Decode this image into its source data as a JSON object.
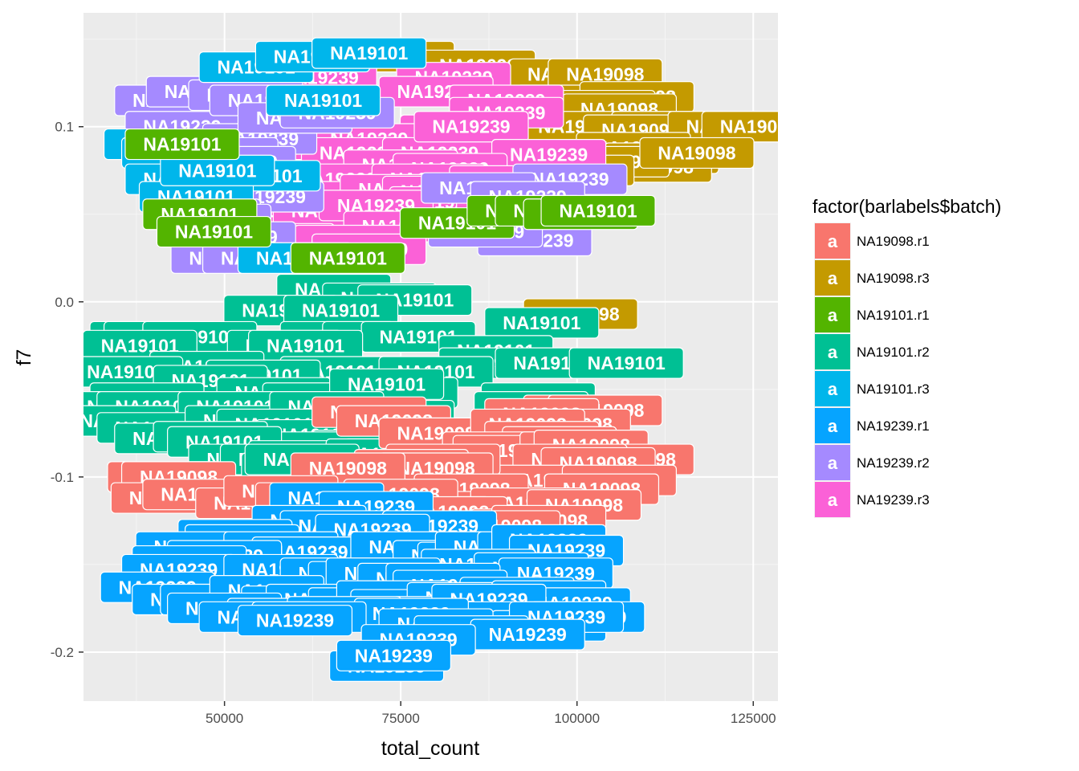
{
  "chart_data": {
    "type": "scatter",
    "xlabel": "total_count",
    "ylabel": "f7",
    "xlim": [
      30000,
      128500
    ],
    "ylim": [
      -0.228,
      0.165
    ],
    "x_ticks": [
      50000,
      75000,
      100000,
      125000
    ],
    "x_tick_labels": [
      "50000",
      "75000",
      "100000",
      "125000"
    ],
    "y_ticks": [
      0.1,
      0.0,
      -0.1,
      -0.2
    ],
    "y_tick_labels": [
      "0.1",
      "0.0",
      "-0.1",
      "-0.2"
    ],
    "grid": true,
    "legend": {
      "title": "factor(barlabels$batch)",
      "position": "right",
      "key_glyph": "a",
      "entries": [
        {
          "name": "NA19098.r1",
          "color": "#F8766D"
        },
        {
          "name": "NA19098.r3",
          "color": "#C49A00"
        },
        {
          "name": "NA19101.r1",
          "color": "#53B400"
        },
        {
          "name": "NA19101.r2",
          "color": "#00C094"
        },
        {
          "name": "NA19101.r3",
          "color": "#00B6EB"
        },
        {
          "name": "NA19239.r1",
          "color": "#06A4FF"
        },
        {
          "name": "NA19239.r2",
          "color": "#A58AFF"
        },
        {
          "name": "NA19239.r3",
          "color": "#FB61D7"
        }
      ]
    },
    "series": [
      {
        "name": "NA19098.r3",
        "label": "NA19098",
        "points": [
          [
            74500,
            0.14
          ],
          [
            86000,
            0.135
          ],
          [
            98500,
            0.13
          ],
          [
            104000,
            0.13
          ],
          [
            99500,
            0.115
          ],
          [
            108500,
            0.117
          ],
          [
            95000,
            0.105
          ],
          [
            103000,
            0.112
          ],
          [
            106000,
            0.11
          ],
          [
            100000,
            0.1
          ],
          [
            113000,
            0.1
          ],
          [
            109000,
            0.098
          ],
          [
            121000,
            0.1
          ],
          [
            125800,
            0.1
          ],
          [
            108000,
            0.088
          ],
          [
            112000,
            0.082
          ],
          [
            111000,
            0.077
          ],
          [
            105000,
            0.08
          ],
          [
            117000,
            0.085
          ],
          [
            100000,
            0.075
          ],
          [
            88500,
            0.07
          ],
          [
            91500,
            0.066
          ],
          [
            96000,
            0.072
          ],
          [
            100500,
            -0.007
          ]
        ]
      },
      {
        "name": "NA19239.r3",
        "label": "NA19239",
        "points": [
          [
            56000,
            0.13
          ],
          [
            63500,
            0.128
          ],
          [
            82500,
            0.128
          ],
          [
            80000,
            0.12
          ],
          [
            90000,
            0.115
          ],
          [
            90000,
            0.108
          ],
          [
            83000,
            0.098
          ],
          [
            63500,
            0.09
          ],
          [
            70500,
            0.093
          ],
          [
            69000,
            0.085
          ],
          [
            80500,
            0.085
          ],
          [
            85000,
            0.1
          ],
          [
            96000,
            0.084
          ],
          [
            75000,
            0.078
          ],
          [
            82000,
            0.076
          ],
          [
            66000,
            0.07
          ],
          [
            47000,
            0.06
          ],
          [
            60000,
            0.06
          ],
          [
            79000,
            0.07
          ],
          [
            90000,
            0.069
          ],
          [
            74500,
            0.064
          ],
          [
            80500,
            0.063
          ],
          [
            57500,
            0.052
          ],
          [
            81500,
            0.057
          ],
          [
            65000,
            0.052
          ],
          [
            71500,
            0.055
          ],
          [
            91000,
            0.05
          ],
          [
            86500,
            0.044
          ],
          [
            75000,
            0.043
          ],
          [
            90000,
            0.04
          ],
          [
            57500,
            0.036
          ],
          [
            68000,
            0.035
          ],
          [
            70500,
            0.03
          ]
        ]
      },
      {
        "name": "NA19239.r2",
        "label": "NA19239",
        "points": [
          [
            42500,
            0.115
          ],
          [
            44000,
            0.1
          ],
          [
            47000,
            0.12
          ],
          [
            53000,
            0.118
          ],
          [
            56000,
            0.115
          ],
          [
            55000,
            0.093
          ],
          [
            49500,
            0.085
          ],
          [
            60000,
            0.105
          ],
          [
            66000,
            0.108
          ],
          [
            52000,
            0.08
          ],
          [
            53500,
            0.07
          ],
          [
            56000,
            0.06
          ],
          [
            47000,
            0.05
          ],
          [
            48500,
            0.047
          ],
          [
            52000,
            0.037
          ],
          [
            50500,
            0.025
          ],
          [
            55000,
            0.025
          ],
          [
            99000,
            0.07
          ],
          [
            86000,
            0.065
          ],
          [
            93000,
            0.06
          ],
          [
            94000,
            0.035
          ],
          [
            87000,
            0.04
          ]
        ]
      },
      {
        "name": "NA19101.r3",
        "label": "NA19101",
        "points": [
          [
            54500,
            0.134
          ],
          [
            62500,
            0.14
          ],
          [
            70500,
            0.142
          ],
          [
            64000,
            0.115
          ],
          [
            41000,
            0.09
          ],
          [
            43500,
            0.085
          ],
          [
            44000,
            0.07
          ],
          [
            55500,
            0.072
          ],
          [
            46000,
            0.06
          ],
          [
            60000,
            0.025
          ],
          [
            49000,
            0.075
          ]
        ]
      },
      {
        "name": "NA19101.r1",
        "label": "NA19101",
        "points": [
          [
            44000,
            0.09
          ],
          [
            46500,
            0.05
          ],
          [
            48500,
            0.04
          ],
          [
            67500,
            0.025
          ],
          [
            83000,
            0.045
          ],
          [
            92500,
            0.052
          ],
          [
            96500,
            0.052
          ],
          [
            100500,
            0.05
          ],
          [
            103000,
            0.052
          ]
        ]
      },
      {
        "name": "NA19101.r2",
        "label": "NA19101",
        "points": [
          [
            65500,
            0.007
          ],
          [
            72000,
            0.002
          ],
          [
            77000,
            0.001
          ],
          [
            95000,
            -0.012
          ],
          [
            58000,
            -0.005
          ],
          [
            66500,
            -0.005
          ],
          [
            39000,
            -0.02
          ],
          [
            41000,
            -0.02
          ],
          [
            46500,
            -0.02
          ],
          [
            66000,
            -0.02
          ],
          [
            72000,
            -0.02
          ],
          [
            77500,
            -0.02
          ],
          [
            58500,
            -0.025
          ],
          [
            38000,
            -0.025
          ],
          [
            61500,
            -0.025
          ],
          [
            88500,
            -0.028
          ],
          [
            88500,
            -0.035
          ],
          [
            47500,
            -0.037
          ],
          [
            66000,
            -0.04
          ],
          [
            36000,
            -0.04
          ],
          [
            55500,
            -0.042
          ],
          [
            48000,
            -0.045
          ],
          [
            80000,
            -0.04
          ],
          [
            96500,
            -0.035
          ],
          [
            107000,
            -0.035
          ],
          [
            39000,
            -0.055
          ],
          [
            57000,
            -0.052
          ],
          [
            63500,
            -0.055
          ],
          [
            75000,
            -0.052
          ],
          [
            73000,
            -0.047
          ],
          [
            60000,
            -0.06
          ],
          [
            49500,
            -0.065
          ],
          [
            94500,
            -0.055
          ],
          [
            36000,
            -0.06
          ],
          [
            40000,
            -0.06
          ],
          [
            74500,
            -0.065
          ],
          [
            54000,
            -0.06
          ],
          [
            51500,
            -0.06
          ],
          [
            35000,
            -0.068
          ],
          [
            40000,
            -0.072
          ],
          [
            52500,
            -0.068
          ],
          [
            64500,
            -0.06
          ],
          [
            57000,
            -0.07
          ],
          [
            42500,
            -0.078
          ],
          [
            62500,
            -0.076
          ],
          [
            91000,
            -0.077
          ],
          [
            93500,
            -0.06
          ],
          [
            70500,
            -0.082
          ],
          [
            81500,
            -0.086
          ],
          [
            65000,
            -0.083
          ],
          [
            75000,
            -0.087
          ],
          [
            82000,
            -0.094
          ],
          [
            48000,
            -0.077
          ],
          [
            50000,
            -0.08
          ],
          [
            61500,
            -0.088
          ],
          [
            64000,
            -0.092
          ],
          [
            68500,
            -0.092
          ],
          [
            72500,
            -0.087
          ],
          [
            73500,
            -0.093
          ],
          [
            66000,
            -0.095
          ],
          [
            78000,
            -0.094
          ],
          [
            53000,
            -0.09
          ],
          [
            57500,
            -0.09
          ],
          [
            60500,
            -0.095
          ],
          [
            61000,
            -0.09
          ],
          [
            87500,
            -0.095
          ],
          [
            93000,
            -0.095
          ],
          [
            92000,
            -0.076
          ]
        ]
      },
      {
        "name": "NA19098.r1",
        "label": "NA19098",
        "points": [
          [
            70500,
            -0.063
          ],
          [
            74000,
            -0.068
          ],
          [
            80000,
            -0.075
          ],
          [
            100500,
            -0.062
          ],
          [
            104000,
            -0.062
          ],
          [
            95000,
            -0.064
          ],
          [
            99500,
            -0.07
          ],
          [
            93000,
            -0.07
          ],
          [
            95000,
            -0.077
          ],
          [
            97500,
            -0.08
          ],
          [
            89000,
            -0.083
          ],
          [
            90500,
            -0.085
          ],
          [
            100000,
            -0.083
          ],
          [
            102000,
            -0.082
          ],
          [
            108500,
            -0.09
          ],
          [
            99000,
            -0.09
          ],
          [
            103000,
            -0.092
          ],
          [
            95500,
            -0.102
          ],
          [
            106000,
            -0.102
          ],
          [
            103500,
            -0.107
          ],
          [
            81000,
            -0.09
          ],
          [
            76500,
            -0.093
          ],
          [
            80000,
            -0.095
          ],
          [
            81000,
            -0.11
          ],
          [
            85000,
            -0.107
          ],
          [
            85000,
            -0.117
          ],
          [
            93000,
            -0.115
          ],
          [
            101000,
            -0.116
          ],
          [
            67500,
            -0.095
          ],
          [
            41500,
            -0.1
          ],
          [
            43500,
            -0.1
          ],
          [
            42000,
            -0.112
          ],
          [
            46500,
            -0.11
          ],
          [
            54000,
            -0.115
          ],
          [
            65500,
            -0.12
          ],
          [
            58000,
            -0.108
          ],
          [
            62500,
            -0.112
          ],
          [
            74000,
            -0.12
          ],
          [
            79500,
            -0.12
          ],
          [
            75000,
            -0.11
          ],
          [
            82000,
            -0.12
          ],
          [
            93000,
            -0.127
          ],
          [
            96000,
            -0.125
          ],
          [
            89500,
            -0.128
          ]
        ]
      },
      {
        "name": "NA19239.r1",
        "label": "NA19239",
        "points": [
          [
            64500,
            -0.112
          ],
          [
            71500,
            -0.117
          ],
          [
            62000,
            -0.125
          ],
          [
            57500,
            -0.138
          ],
          [
            66000,
            -0.128
          ],
          [
            80500,
            -0.128
          ],
          [
            71000,
            -0.13
          ],
          [
            51500,
            -0.133
          ],
          [
            52500,
            -0.136
          ],
          [
            54000,
            -0.14
          ],
          [
            45500,
            -0.14
          ],
          [
            58000,
            -0.14
          ],
          [
            62000,
            -0.143
          ],
          [
            50000,
            -0.145
          ],
          [
            76000,
            -0.14
          ],
          [
            82000,
            -0.145
          ],
          [
            85500,
            -0.146
          ],
          [
            90000,
            -0.147
          ],
          [
            92000,
            -0.146
          ],
          [
            88000,
            -0.14
          ],
          [
            94000,
            -0.14
          ],
          [
            96000,
            -0.136
          ],
          [
            98500,
            -0.142
          ],
          [
            86000,
            -0.15
          ],
          [
            93500,
            -0.152
          ],
          [
            97000,
            -0.155
          ],
          [
            45000,
            -0.148
          ],
          [
            47500,
            -0.158
          ],
          [
            54000,
            -0.16
          ],
          [
            43500,
            -0.153
          ],
          [
            58000,
            -0.153
          ],
          [
            66000,
            -0.155
          ],
          [
            70000,
            -0.157
          ],
          [
            72500,
            -0.155
          ],
          [
            77000,
            -0.158
          ],
          [
            81000,
            -0.158
          ],
          [
            82000,
            -0.162
          ],
          [
            91500,
            -0.166
          ],
          [
            40500,
            -0.163
          ],
          [
            45000,
            -0.17
          ],
          [
            49000,
            -0.17
          ],
          [
            56000,
            -0.165
          ],
          [
            60500,
            -0.171
          ],
          [
            64000,
            -0.17
          ],
          [
            70000,
            -0.172
          ],
          [
            74000,
            -0.168
          ],
          [
            76000,
            -0.173
          ],
          [
            84000,
            -0.169
          ],
          [
            96000,
            -0.168
          ],
          [
            99500,
            -0.172
          ],
          [
            82000,
            -0.177
          ],
          [
            87500,
            -0.17
          ],
          [
            91000,
            -0.18
          ],
          [
            50000,
            -0.175
          ],
          [
            58500,
            -0.178
          ],
          [
            67000,
            -0.177
          ],
          [
            76500,
            -0.178
          ],
          [
            96000,
            -0.185
          ],
          [
            101500,
            -0.18
          ],
          [
            98500,
            -0.18
          ],
          [
            54500,
            -0.18
          ],
          [
            62000,
            -0.18
          ],
          [
            60000,
            -0.182
          ],
          [
            80000,
            -0.184
          ],
          [
            85000,
            -0.188
          ],
          [
            93000,
            -0.19
          ],
          [
            77500,
            -0.193
          ],
          [
            73000,
            -0.208
          ],
          [
            74000,
            -0.202
          ]
        ]
      }
    ]
  }
}
